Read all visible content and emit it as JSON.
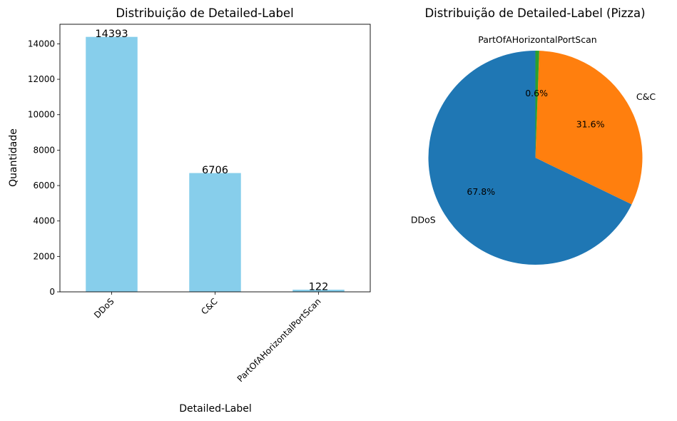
{
  "chart_data": [
    {
      "type": "bar",
      "title": "Distribuição de Detailed-Label",
      "xlabel": "Detailed-Label",
      "ylabel": "Quantidade",
      "categories": [
        "DDoS",
        "C&C",
        "PartOfAHorizontalPortScan"
      ],
      "values": [
        14393,
        6706,
        122
      ],
      "data_labels": [
        "14393",
        "6706",
        "122"
      ],
      "ylim": [
        0,
        15105
      ],
      "yticks": [
        0,
        2000,
        4000,
        6000,
        8000,
        10000,
        12000,
        14000
      ],
      "ytick_labels": [
        "0",
        "2000",
        "4000",
        "6000",
        "8000",
        "10000",
        "12000",
        "14000"
      ],
      "bar_color": "#87ceeb",
      "grid": false
    },
    {
      "type": "pie",
      "title": "Distribuição de Detailed-Label (Pizza)",
      "labels": [
        "DDoS",
        "C&C",
        "PartOfAHorizontalPortScan"
      ],
      "values": [
        14393,
        6706,
        122
      ],
      "percent_labels": [
        "67.8%",
        "31.6%",
        "0.6%"
      ],
      "colors": [
        "#1f77b4",
        "#ff7f0e",
        "#2ca02c"
      ],
      "start_angle": 90,
      "direction": "counterclockwise"
    }
  ]
}
